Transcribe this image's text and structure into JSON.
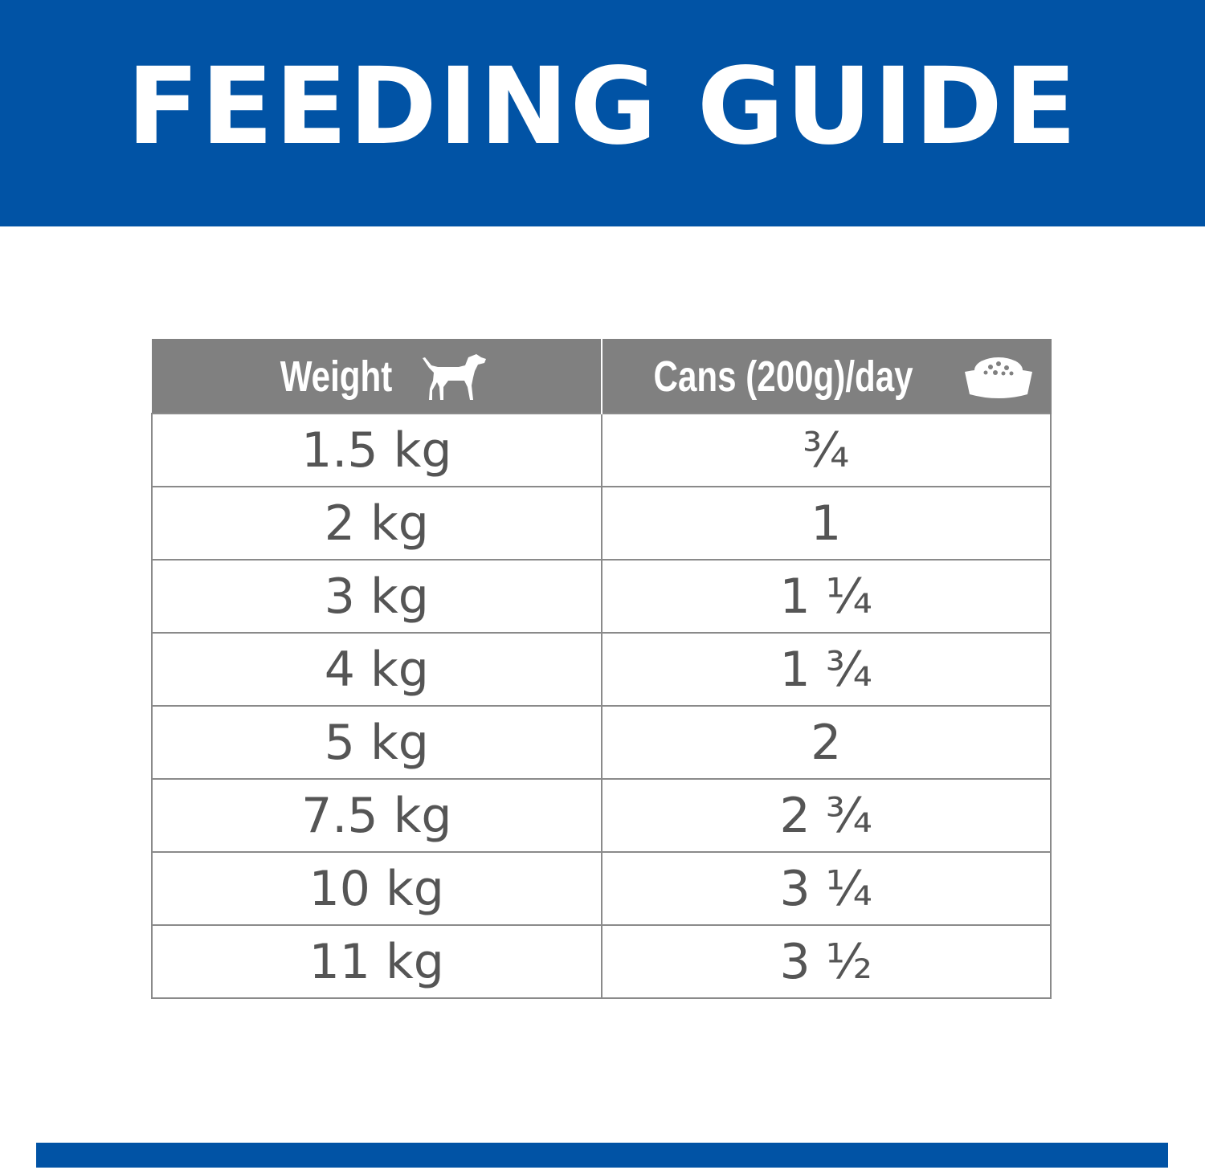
{
  "header": {
    "title": "FEEDING GUIDE"
  },
  "table": {
    "columns": [
      "Weight",
      "Cans (200g)/day"
    ],
    "rows": [
      [
        "1.5 kg",
        "¾"
      ],
      [
        "2 kg",
        "1"
      ],
      [
        "3 kg",
        "1 ¼"
      ],
      [
        "4 kg",
        "1 ¾"
      ],
      [
        "5 kg",
        "2"
      ],
      [
        "7.5 kg",
        "2 ¾"
      ],
      [
        "10 kg",
        "3 ¼"
      ],
      [
        "11 kg",
        "3 ½"
      ]
    ]
  }
}
